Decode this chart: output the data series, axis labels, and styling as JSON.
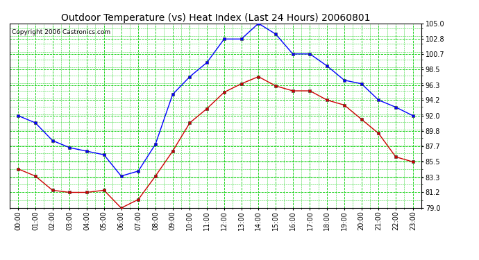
{
  "title": "Outdoor Temperature (vs) Heat Index (Last 24 Hours) 20060801",
  "copyright": "Copyright 2006 Castronics.com",
  "hours": [
    "00:00",
    "01:00",
    "02:00",
    "03:00",
    "04:00",
    "05:00",
    "06:00",
    "07:00",
    "08:00",
    "09:00",
    "10:00",
    "11:00",
    "12:00",
    "13:00",
    "14:00",
    "15:00",
    "16:00",
    "17:00",
    "18:00",
    "19:00",
    "20:00",
    "21:00",
    "22:00",
    "23:00"
  ],
  "blue_series": [
    92.0,
    91.0,
    88.5,
    87.5,
    87.0,
    86.5,
    83.5,
    84.2,
    88.0,
    95.0,
    97.5,
    99.5,
    102.8,
    102.8,
    105.0,
    103.5,
    100.7,
    100.7,
    99.0,
    97.0,
    96.5,
    94.2,
    93.2,
    92.0
  ],
  "red_series": [
    84.5,
    83.5,
    81.5,
    81.2,
    81.2,
    81.5,
    79.0,
    80.2,
    83.5,
    87.0,
    91.0,
    93.0,
    95.3,
    96.5,
    97.5,
    96.2,
    95.5,
    95.5,
    94.2,
    93.5,
    91.5,
    89.5,
    86.2,
    85.5
  ],
  "blue_color": "#0000ff",
  "red_color": "#cc0000",
  "bg_color": "#ffffff",
  "plot_bg_color": "#ffffff",
  "grid_color": "#00cc00",
  "ylim": [
    79.0,
    105.0
  ],
  "yticks": [
    79.0,
    81.2,
    83.3,
    85.5,
    87.7,
    89.8,
    92.0,
    94.2,
    96.3,
    98.5,
    100.7,
    102.8,
    105.0
  ],
  "title_fontsize": 10,
  "copyright_fontsize": 6.5,
  "tick_fontsize": 7
}
